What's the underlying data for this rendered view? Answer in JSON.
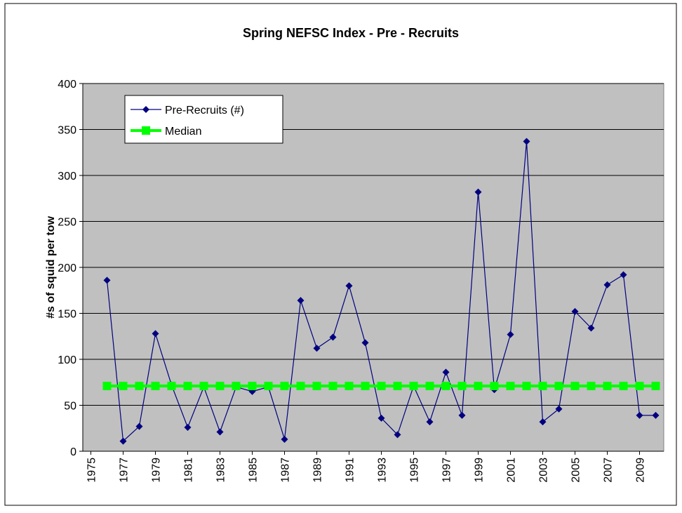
{
  "chart_data": {
    "type": "line",
    "title": "Spring NEFSC Index - Pre - Recruits",
    "y_label": "#s of squid per tow",
    "x": [
      1976,
      1977,
      1978,
      1979,
      1980,
      1981,
      1982,
      1983,
      1984,
      1985,
      1986,
      1987,
      1988,
      1989,
      1990,
      1991,
      1992,
      1993,
      1994,
      1995,
      1996,
      1997,
      1998,
      1999,
      2000,
      2001,
      2002,
      2003,
      2004,
      2005,
      2006,
      2007,
      2008,
      2009,
      2010
    ],
    "series": [
      {
        "name": "Pre-Recruits (#)",
        "color": "#000080",
        "marker": "diamond",
        "values": [
          186,
          11,
          27,
          128,
          72,
          26,
          70,
          21,
          70,
          65,
          70,
          13,
          164,
          112,
          124,
          180,
          118,
          36,
          18,
          71,
          32,
          86,
          39,
          282,
          67,
          127,
          337,
          32,
          46,
          152,
          134,
          181,
          192,
          39,
          39
        ]
      },
      {
        "name": "Median",
        "color": "#00ff00",
        "marker": "square",
        "values": [
          71,
          71,
          71,
          71,
          71,
          71,
          71,
          71,
          71,
          71,
          71,
          71,
          71,
          71,
          71,
          71,
          71,
          71,
          71,
          71,
          71,
          71,
          71,
          71,
          71,
          71,
          71,
          71,
          71,
          71,
          71,
          71,
          71,
          71,
          71
        ]
      }
    ],
    "xlim": [
      1974.5,
      2010.5
    ],
    "xticks": [
      1975,
      1977,
      1979,
      1981,
      1983,
      1985,
      1987,
      1989,
      1991,
      1993,
      1995,
      1997,
      1999,
      2001,
      2003,
      2005,
      2007,
      2009
    ],
    "ylim": [
      0,
      400
    ],
    "yticks": [
      0,
      50,
      100,
      150,
      200,
      250,
      300,
      350,
      400
    ],
    "grid": true,
    "legend": "upper left",
    "plot_background": "#c0c0c0"
  }
}
